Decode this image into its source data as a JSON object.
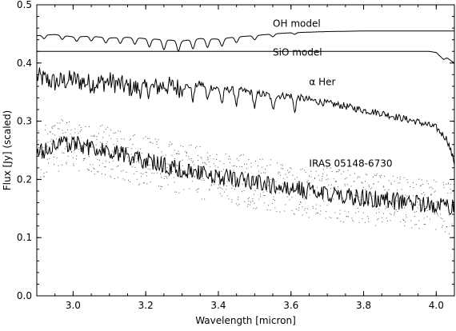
{
  "chart_data": {
    "type": "line",
    "title": "",
    "xlabel": "Wavelength [micron]",
    "ylabel": "Flux [Jy] (scaled)",
    "xlim": [
      2.9,
      4.05
    ],
    "ylim": [
      0.0,
      0.5
    ],
    "x_ticks": [
      "3.0",
      "3.2",
      "3.4",
      "3.6",
      "3.8",
      "4.0"
    ],
    "x_tick_values": [
      3.0,
      3.2,
      3.4,
      3.6,
      3.8,
      4.0
    ],
    "y_ticks": [
      "0.0",
      "0.1",
      "0.2",
      "0.3",
      "0.4",
      "0.5"
    ],
    "y_tick_values": [
      0.0,
      0.1,
      0.2,
      0.3,
      0.4,
      0.5
    ],
    "grid": false,
    "line_color": "#000000",
    "series": [
      {
        "name": "OH model",
        "label_at": [
          3.55,
          0.462
        ],
        "x": [
          2.9,
          2.95,
          3.0,
          3.05,
          3.1,
          3.15,
          3.2,
          3.25,
          3.3,
          3.35,
          3.4,
          3.45,
          3.5,
          3.55,
          3.6,
          3.65,
          3.7,
          3.8,
          3.9,
          4.0,
          4.05
        ],
        "y": [
          0.447,
          0.449,
          0.445,
          0.446,
          0.443,
          0.444,
          0.442,
          0.44,
          0.438,
          0.442,
          0.441,
          0.445,
          0.447,
          0.45,
          0.452,
          0.453,
          0.454,
          0.455,
          0.455,
          0.455,
          0.455
        ],
        "absorption_lines": [
          2.92,
          2.97,
          3.01,
          3.05,
          3.09,
          3.13,
          3.17,
          3.21,
          3.25,
          3.29,
          3.33,
          3.37,
          3.41,
          3.45,
          3.5,
          3.55,
          3.61
        ],
        "absorption_depth": [
          0.006,
          0.007,
          0.008,
          0.008,
          0.009,
          0.01,
          0.011,
          0.014,
          0.017,
          0.018,
          0.016,
          0.015,
          0.013,
          0.01,
          0.007,
          0.005,
          0.003
        ]
      },
      {
        "name": "SiO model",
        "label_at": [
          3.55,
          0.413
        ],
        "x": [
          2.9,
          3.5,
          3.98,
          4.0,
          4.01,
          4.02,
          4.03,
          4.04,
          4.05
        ],
        "y": [
          0.42,
          0.42,
          0.42,
          0.418,
          0.412,
          0.406,
          0.409,
          0.404,
          0.4
        ]
      },
      {
        "name": "α Her",
        "label_at": [
          3.65,
          0.362
        ],
        "x": [
          2.9,
          2.95,
          3.0,
          3.05,
          3.1,
          3.15,
          3.2,
          3.25,
          3.3,
          3.35,
          3.4,
          3.45,
          3.5,
          3.55,
          3.6,
          3.65,
          3.7,
          3.75,
          3.8,
          3.85,
          3.9,
          3.95,
          4.0,
          4.03,
          4.05
        ],
        "y": [
          0.38,
          0.37,
          0.375,
          0.368,
          0.372,
          0.362,
          0.358,
          0.365,
          0.36,
          0.365,
          0.357,
          0.355,
          0.35,
          0.345,
          0.345,
          0.338,
          0.332,
          0.327,
          0.32,
          0.315,
          0.307,
          0.3,
          0.29,
          0.27,
          0.23
        ]
      },
      {
        "name": "IRAS 05148-6730",
        "label_at": [
          3.65,
          0.222
        ],
        "x": [
          2.9,
          2.95,
          3.0,
          3.05,
          3.1,
          3.15,
          3.2,
          3.25,
          3.3,
          3.35,
          3.4,
          3.45,
          3.5,
          3.55,
          3.6,
          3.65,
          3.7,
          3.75,
          3.8,
          3.85,
          3.9,
          3.95,
          4.0,
          4.05
        ],
        "y": [
          0.245,
          0.258,
          0.262,
          0.255,
          0.248,
          0.24,
          0.232,
          0.225,
          0.218,
          0.212,
          0.206,
          0.2,
          0.195,
          0.19,
          0.185,
          0.18,
          0.176,
          0.172,
          0.168,
          0.165,
          0.162,
          0.158,
          0.155,
          0.15
        ]
      }
    ],
    "labels": {
      "oh": "OH model",
      "sio": "SiO model",
      "aher": "α Her",
      "iras": "IRAS 05148-6730"
    }
  }
}
